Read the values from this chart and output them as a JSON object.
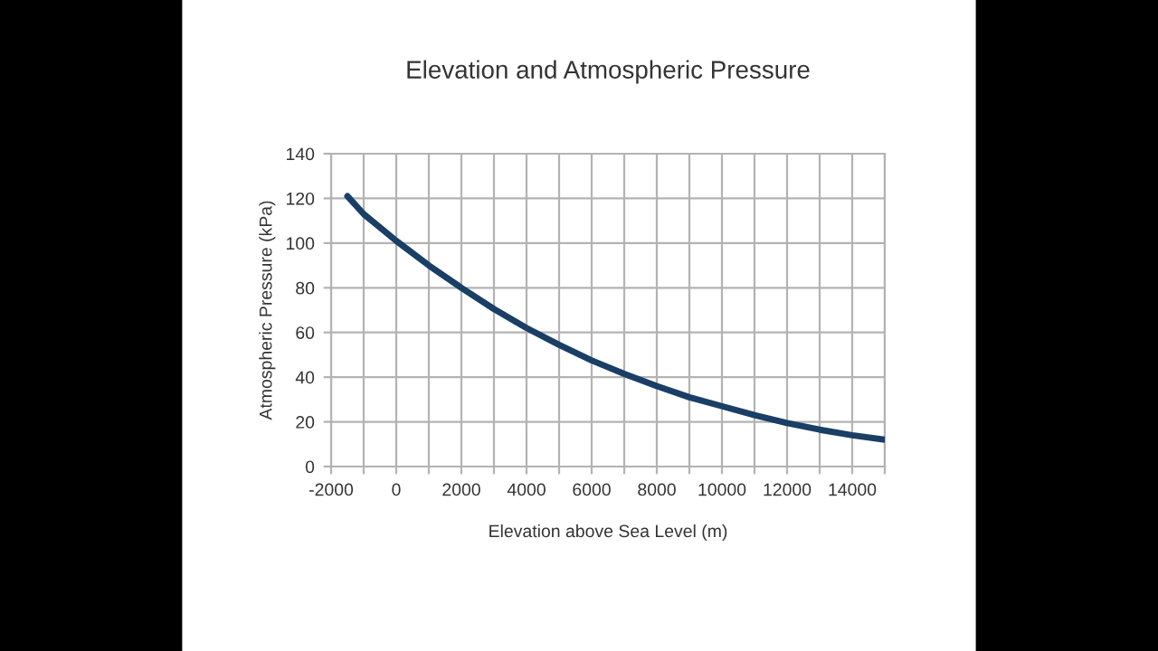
{
  "chart_data": {
    "type": "line",
    "title": "Elevation and Atmospheric Pressure",
    "xlabel": "Elevation above Sea Level (m)",
    "ylabel": "Atmospheric Pressure (kPa)",
    "x": [
      -1500,
      -1000,
      0,
      1000,
      2000,
      3000,
      4000,
      5000,
      6000,
      7000,
      8000,
      9000,
      10000,
      11000,
      12000,
      13000,
      14000,
      15000
    ],
    "series": [
      {
        "color": "#1a3f66",
        "values": [
          121,
          113,
          101,
          90,
          80,
          70.5,
          62,
          54.5,
          47.5,
          41.5,
          36,
          31,
          27,
          23,
          19.5,
          16.5,
          14,
          12
        ]
      }
    ],
    "xlim": [
      -2000,
      15000
    ],
    "xticks": [
      -2000,
      {
        "value": -1000,
        "label": null
      },
      0,
      {
        "value": 1000,
        "label": null
      },
      2000,
      {
        "value": 3000,
        "label": null
      },
      4000,
      {
        "value": 5000,
        "label": null
      },
      6000,
      {
        "value": 7000,
        "label": null
      },
      8000,
      {
        "value": 9000,
        "label": null
      },
      10000,
      {
        "value": 11000,
        "label": null
      },
      12000,
      {
        "value": 13000,
        "label": null
      },
      14000,
      {
        "value": 15000,
        "label": null
      }
    ],
    "ylim": [
      0,
      140
    ],
    "yticks": [
      0,
      20,
      40,
      60,
      80,
      100,
      120,
      140
    ],
    "grid": true,
    "marker": "none",
    "line_style": "solid"
  }
}
